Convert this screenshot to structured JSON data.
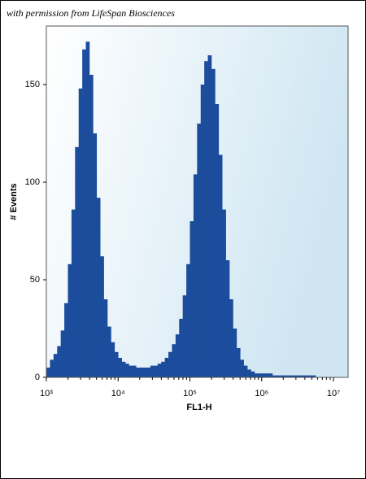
{
  "chart_data": {
    "type": "histogram",
    "source_note": "with permission from LifeSpan Biosciences",
    "x_label": "FL1-H",
    "y_label": "# Events",
    "x_log_scale": true,
    "color": "#1c4c9c",
    "xlim": [
      1000,
      16000000
    ],
    "ylim": [
      0,
      180
    ],
    "xticks": [
      {
        "value": 1000,
        "label": "10³"
      },
      {
        "value": 10000,
        "label": "10⁴"
      },
      {
        "value": 100000,
        "label": "10⁵"
      },
      {
        "value": 1000000,
        "label": "10⁶"
      },
      {
        "value": 10000000,
        "label": "10⁷"
      }
    ],
    "yticks": [
      0,
      50,
      100,
      150
    ],
    "bins": [
      1000,
      1122,
      1259,
      1413,
      1585,
      1778,
      1995,
      2239,
      2512,
      2818,
      3162,
      3548,
      3981,
      4467,
      5012,
      5623,
      6310,
      7079,
      7943,
      8913,
      10000,
      11220,
      12590,
      14130,
      15850,
      17780,
      19950,
      22390,
      25120,
      28180,
      31620,
      35480,
      39810,
      44670,
      50120,
      56230,
      63100,
      70790,
      79430,
      89130,
      100000,
      112200,
      125900,
      141300,
      158500,
      177800,
      199500,
      223900,
      251200,
      281800,
      316200,
      354800,
      398100,
      446700,
      501200,
      562300,
      631000,
      707900,
      794300,
      891300,
      1000000,
      1122000,
      1259000,
      1413000,
      1585000,
      1778000,
      1995000,
      2239000,
      2512000,
      2818000,
      3162000,
      3548000,
      3981000,
      4467000,
      5012000,
      5623000,
      6310000,
      7079000,
      7943000,
      8913000,
      10000000
    ],
    "counts": [
      5,
      9,
      12,
      16,
      24,
      38,
      58,
      86,
      118,
      148,
      168,
      172,
      155,
      125,
      92,
      62,
      40,
      26,
      18,
      13,
      10,
      8,
      7,
      6,
      6,
      5,
      5,
      5,
      5,
      6,
      6,
      7,
      8,
      10,
      13,
      17,
      22,
      30,
      42,
      58,
      80,
      104,
      130,
      150,
      162,
      165,
      158,
      140,
      114,
      86,
      60,
      40,
      25,
      15,
      9,
      6,
      4,
      3,
      2,
      2,
      2,
      2,
      2,
      1,
      1,
      1,
      1,
      1,
      1,
      1,
      1,
      1,
      1,
      1,
      1,
      0,
      0,
      0,
      0,
      0
    ]
  }
}
